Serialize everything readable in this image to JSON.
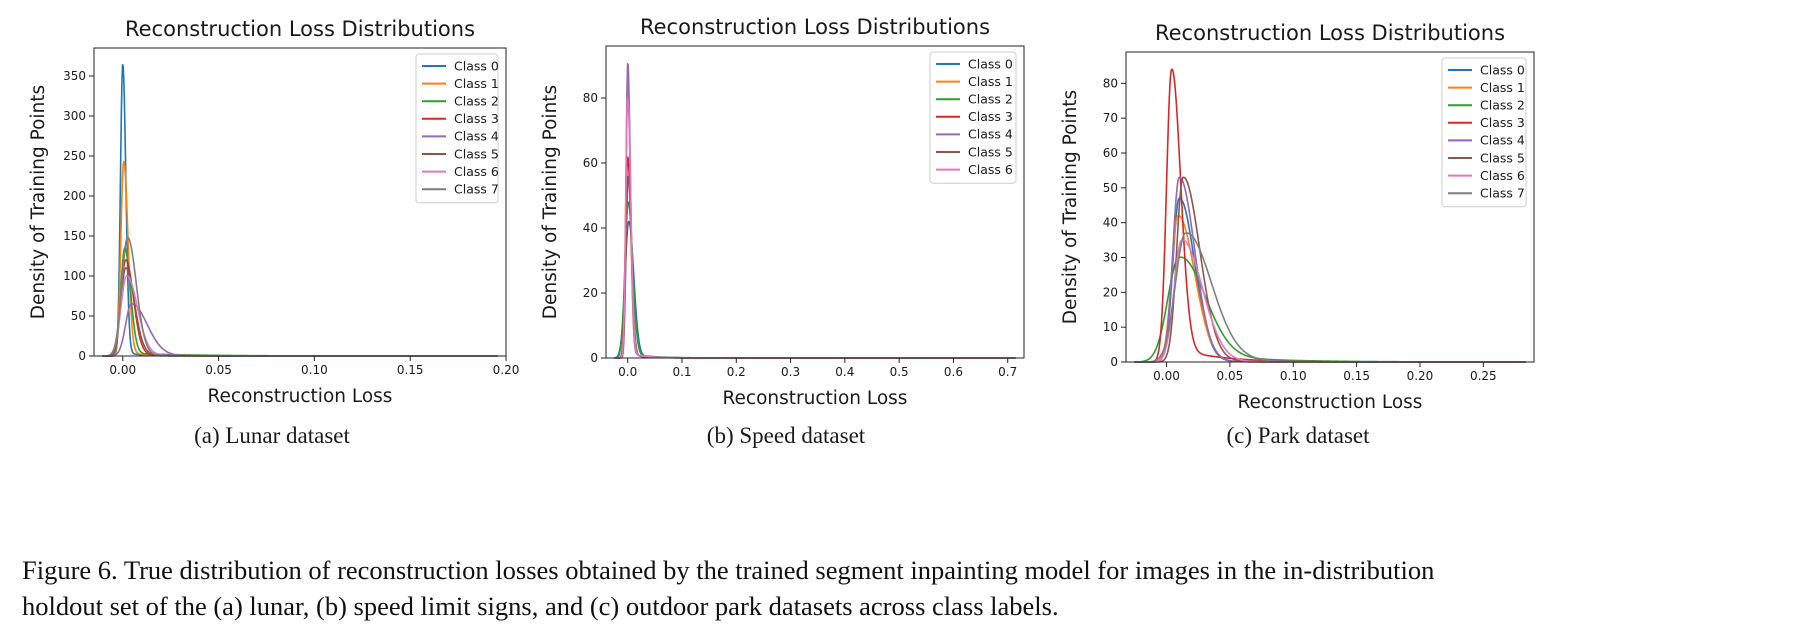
{
  "figure": {
    "caption_line1": "Figure 6.  True distribution of reconstruction losses obtained by the trained segment inpainting model for images in the in-distribution",
    "caption_line2": "holdout set of the (a) lunar, (b) speed limit signs, and (c) outdoor park datasets across class labels."
  },
  "colors": [
    "#1f77b4",
    "#ff7f0e",
    "#2ca02c",
    "#d62728",
    "#9467bd",
    "#8c564b",
    "#e377c2",
    "#7f7f7f"
  ],
  "chart_data": [
    {
      "type": "line",
      "title": "Reconstruction Loss Distributions",
      "xlabel": "Reconstruction Loss",
      "ylabel": "Density of Training Points",
      "subcaption": "(a) Lunar dataset",
      "xlim": [
        -0.015,
        0.2
      ],
      "ylim": [
        0,
        385
      ],
      "xticks": [
        0.0,
        0.05,
        0.1,
        0.15,
        0.2
      ],
      "xtick_labels": [
        "0.00",
        "0.05",
        "0.10",
        "0.15",
        "0.20"
      ],
      "yticks": [
        0,
        50,
        100,
        150,
        200,
        250,
        300,
        350
      ],
      "ytick_labels": [
        "0",
        "50",
        "100",
        "150",
        "200",
        "250",
        "300",
        "350"
      ],
      "grid": false,
      "legend": "top-right",
      "series": [
        {
          "name": "Class 0",
          "peak_x": 0.0,
          "peak": 365,
          "left_width": 0.0012,
          "right_width": 0.0016,
          "tail": 0.02,
          "tail_scale": 0.006
        },
        {
          "name": "Class 1",
          "peak_x": 0.0005,
          "peak": 243,
          "left_width": 0.0015,
          "right_width": 0.0022,
          "tail": 0.03,
          "tail_scale": 0.008
        },
        {
          "name": "Class 2",
          "peak_x": 0.001,
          "peak": 135,
          "left_width": 0.002,
          "right_width": 0.003,
          "tail": 0.03,
          "tail_scale": 0.03
        },
        {
          "name": "Class 3",
          "peak_x": 0.0015,
          "peak": 120,
          "left_width": 0.0025,
          "right_width": 0.004,
          "tail": 0.04,
          "tail_scale": 0.012
        },
        {
          "name": "Class 4",
          "peak_x": 0.0045,
          "peak": 65,
          "left_width": 0.003,
          "right_width": 0.008,
          "tail": 0.08,
          "tail_scale": 0.012
        },
        {
          "name": "Class 5",
          "peak_x": 0.0015,
          "peak": 110,
          "left_width": 0.0025,
          "right_width": 0.0045,
          "tail": 0.05,
          "tail_scale": 0.014
        },
        {
          "name": "Class 6",
          "peak_x": 0.002,
          "peak": 100,
          "left_width": 0.003,
          "right_width": 0.0055,
          "tail": 0.06,
          "tail_scale": 0.012
        },
        {
          "name": "Class 7",
          "peak_x": 0.0025,
          "peak": 148,
          "left_width": 0.003,
          "right_width": 0.0045,
          "tail": 0.04,
          "tail_scale": 0.01
        }
      ]
    },
    {
      "type": "line",
      "title": "Reconstruction Loss Distributions",
      "xlabel": "Reconstruction Loss",
      "ylabel": "Density of Training Points",
      "subcaption": "(b) Speed dataset",
      "xlim": [
        -0.04,
        0.73
      ],
      "ylim": [
        0,
        96
      ],
      "xticks": [
        0.0,
        0.1,
        0.2,
        0.3,
        0.4,
        0.5,
        0.6,
        0.7
      ],
      "xtick_labels": [
        "0.0",
        "0.1",
        "0.2",
        "0.3",
        "0.4",
        "0.5",
        "0.6",
        "0.7"
      ],
      "yticks": [
        0,
        20,
        40,
        60,
        80
      ],
      "ytick_labels": [
        "0",
        "20",
        "40",
        "60",
        "80"
      ],
      "grid": false,
      "legend": "top-right",
      "series": [
        {
          "name": "Class 0",
          "peak_x": 0.002,
          "peak": 42,
          "left_width": 0.007,
          "right_width": 0.009,
          "tail": 0.02,
          "tail_scale": 0.04
        },
        {
          "name": "Class 1",
          "peak_x": 0.0,
          "peak": 86,
          "left_width": 0.0035,
          "right_width": 0.005,
          "tail": 0.02,
          "tail_scale": 0.03
        },
        {
          "name": "Class 2",
          "peak_x": 0.001,
          "peak": 48,
          "left_width": 0.006,
          "right_width": 0.008,
          "tail": 0.03,
          "tail_scale": 0.04
        },
        {
          "name": "Class 3",
          "peak_x": 0.0,
          "peak": 62,
          "left_width": 0.004,
          "right_width": 0.006,
          "tail": 0.02,
          "tail_scale": 0.03
        },
        {
          "name": "Class 4",
          "peak_x": 0.0,
          "peak": 91,
          "left_width": 0.003,
          "right_width": 0.005,
          "tail": 0.02,
          "tail_scale": 0.03
        },
        {
          "name": "Class 5",
          "peak_x": 0.001,
          "peak": 56,
          "left_width": 0.004,
          "right_width": 0.006,
          "tail": 0.02,
          "tail_scale": 0.03
        },
        {
          "name": "Class 6",
          "peak_x": 0.0,
          "peak": 80,
          "left_width": 0.0035,
          "right_width": 0.0055,
          "tail": 0.02,
          "tail_scale": 0.03
        }
      ]
    },
    {
      "type": "line",
      "title": "Reconstruction Loss Distributions",
      "xlabel": "Reconstruction Loss",
      "ylabel": "Density of Training Points",
      "subcaption": "(c) Park dataset",
      "xlim": [
        -0.032,
        0.29
      ],
      "ylim": [
        0,
        89
      ],
      "xticks": [
        0.0,
        0.05,
        0.1,
        0.15,
        0.2,
        0.25
      ],
      "xtick_labels": [
        "0.00",
        "0.05",
        "0.10",
        "0.15",
        "0.20",
        "0.25"
      ],
      "yticks": [
        0,
        10,
        20,
        30,
        40,
        50,
        60,
        70,
        80
      ],
      "ytick_labels": [
        "0",
        "10",
        "20",
        "30",
        "40",
        "50",
        "60",
        "70",
        "80"
      ],
      "grid": false,
      "legend": "top-right",
      "series": [
        {
          "name": "Class 0",
          "peak_x": 0.01,
          "peak": 47,
          "left_width": 0.005,
          "right_width": 0.012,
          "tail": 0.05,
          "tail_scale": 0.015
        },
        {
          "name": "Class 1",
          "peak_x": 0.009,
          "peak": 42,
          "left_width": 0.005,
          "right_width": 0.013,
          "tail": 0.05,
          "tail_scale": 0.015
        },
        {
          "name": "Class 2",
          "peak_x": 0.01,
          "peak": 30,
          "left_width": 0.009,
          "right_width": 0.02,
          "tail": 0.12,
          "tail_scale": 0.045
        },
        {
          "name": "Class 3",
          "peak_x": 0.004,
          "peak": 84,
          "left_width": 0.004,
          "right_width": 0.007,
          "tail": 0.06,
          "tail_scale": 0.03
        },
        {
          "name": "Class 4",
          "peak_x": 0.01,
          "peak": 53,
          "left_width": 0.005,
          "right_width": 0.012,
          "tail": 0.05,
          "tail_scale": 0.015
        },
        {
          "name": "Class 5",
          "peak_x": 0.013,
          "peak": 53,
          "left_width": 0.005,
          "right_width": 0.013,
          "tail": 0.05,
          "tail_scale": 0.02
        },
        {
          "name": "Class 6",
          "peak_x": 0.012,
          "peak": 35,
          "left_width": 0.006,
          "right_width": 0.016,
          "tail": 0.05,
          "tail_scale": 0.02
        },
        {
          "name": "Class 7",
          "peak_x": 0.015,
          "peak": 37,
          "left_width": 0.008,
          "right_width": 0.02,
          "tail": 0.08,
          "tail_scale": 0.03
        }
      ]
    }
  ]
}
